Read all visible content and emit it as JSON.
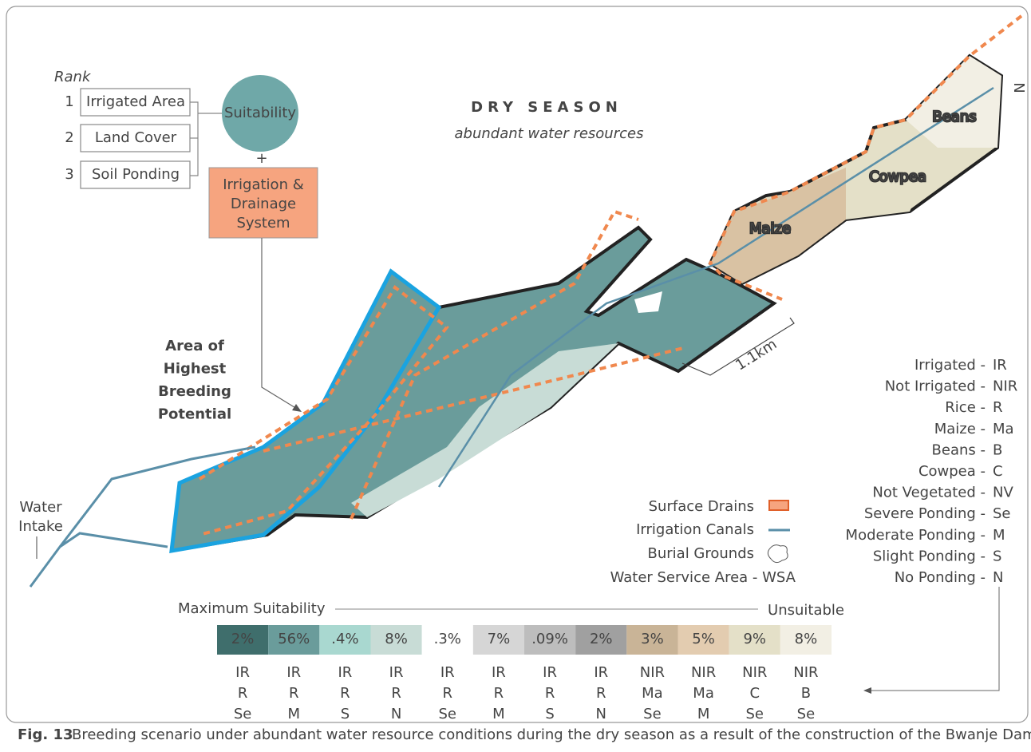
{
  "rank_panel": {
    "heading": "Rank",
    "items": [
      {
        "rank": "1",
        "label": "Irrigated Area"
      },
      {
        "rank": "2",
        "label": "Land Cover"
      },
      {
        "rank": "3",
        "label": "Soil Ponding"
      }
    ],
    "combined": "Suitability",
    "plus": "+",
    "overlay": [
      "Irrigation &",
      "Drainage",
      "System"
    ]
  },
  "title": "DRY SEASON",
  "subtitle": "abundant water resources",
  "map": {
    "crops": [
      "Beans",
      "Cowpea",
      "Maize"
    ],
    "scale": "1.1km",
    "highlight": [
      "Area of",
      "Highest",
      "Breeding",
      "Potential"
    ],
    "intake": [
      "Water",
      "Intake"
    ],
    "north": "N"
  },
  "legend": {
    "features": [
      "Surface Drains",
      "Irrigation Canals",
      "Burial Grounds",
      "Water Service Area - WSA"
    ]
  },
  "abbreviations": [
    {
      "label": "Irrigated -",
      "code": "IR"
    },
    {
      "label": "Not Irrigated -",
      "code": "NIR"
    },
    {
      "label": "Rice -",
      "code": "R"
    },
    {
      "label": "Maize -",
      "code": "Ma"
    },
    {
      "label": "Beans -",
      "code": "B"
    },
    {
      "label": "Cowpea -",
      "code": "C"
    },
    {
      "label": "Not Vegetated -",
      "code": "NV"
    },
    {
      "label": "Severe Ponding -",
      "code": "Se"
    },
    {
      "label": "Moderate Ponding -",
      "code": "M"
    },
    {
      "label": "Slight Ponding -",
      "code": "S"
    },
    {
      "label": "No Ponding -",
      "code": "N"
    }
  ],
  "suitability_scale": {
    "left": "Maximum Suitability",
    "right": "Unsuitable",
    "classes": [
      {
        "share": "2%",
        "color": "#3f6e6c",
        "codes": [
          "IR",
          "R",
          "Se"
        ]
      },
      {
        "share": "56%",
        "color": "#6a9c9b",
        "codes": [
          "IR",
          "R",
          "M"
        ]
      },
      {
        "share": ".4%",
        "color": "#a9d8d0",
        "codes": [
          "IR",
          "R",
          "S"
        ]
      },
      {
        "share": "8%",
        "color": "#c8dcd6",
        "codes": [
          "IR",
          "R",
          "N"
        ]
      },
      {
        "share": ".3%",
        "color": "#ffffff",
        "codes": [
          "IR",
          "R",
          "Se"
        ]
      },
      {
        "share": "7%",
        "color": "#d6d6d6",
        "codes": [
          "IR",
          "R",
          "M"
        ]
      },
      {
        "share": ".09%",
        "color": "#bdbdbd",
        "codes": [
          "IR",
          "R",
          "S"
        ]
      },
      {
        "share": "2%",
        "color": "#a0a0a0",
        "codes": [
          "IR",
          "R",
          "N"
        ]
      },
      {
        "share": "3%",
        "color": "#c9b497",
        "codes": [
          "NIR",
          "Ma",
          "Se"
        ]
      },
      {
        "share": "5%",
        "color": "#e3ccb0",
        "codes": [
          "NIR",
          "Ma",
          "M"
        ]
      },
      {
        "share": "9%",
        "color": "#e4e0c8",
        "codes": [
          "NIR",
          "C",
          "Se"
        ]
      },
      {
        "share": "8%",
        "color": "#f2efe4",
        "codes": [
          "NIR",
          "B",
          "Se"
        ]
      }
    ]
  },
  "caption": {
    "label": "Fig. 13",
    "text": "Breeding scenario under abundant water resource conditions during the dry season as a result of the construction of the Bwanje Dam"
  }
}
